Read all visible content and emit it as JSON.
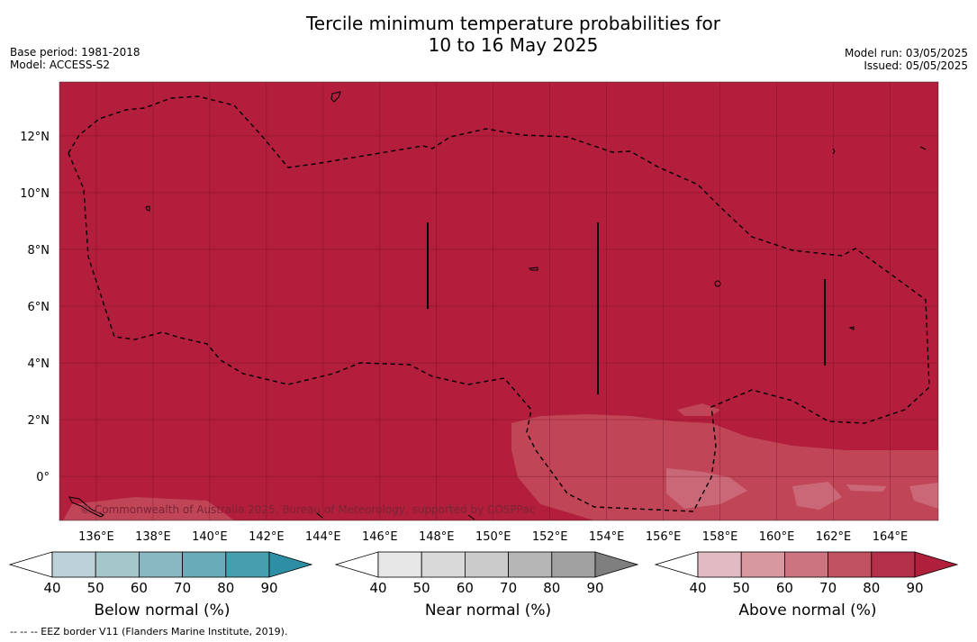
{
  "title_line1": "Tercile minimum temperature probabilities for",
  "title_line2": "10 to 16 May 2025",
  "base_period": "Base period: 1981-2018",
  "model": "Model: ACCESS-S2",
  "model_run": "Model run: 03/05/2025",
  "issued": "Issued: 05/05/2025",
  "copyright": "© Commonwealth of Australia 2025, Bureau of Meteorology, supported by COSPPac",
  "footer": "--  --  -- EEZ border V11 (Flanders Marine Institute, 2019).",
  "map": {
    "x_ticks": [
      "136°E",
      "138°E",
      "140°E",
      "142°E",
      "144°E",
      "146°E",
      "148°E",
      "150°E",
      "152°E",
      "154°E",
      "156°E",
      "158°E",
      "160°E",
      "162°E",
      "164°E"
    ],
    "y_ticks": [
      "12°N",
      "10°N",
      "8°N",
      "6°N",
      "4°N",
      "2°N",
      "0°"
    ],
    "dominant_category": "Above normal",
    "dominant_probability": "90",
    "background_color": "#b21e3c"
  },
  "colorbars": [
    {
      "name": "below-normal",
      "label": "Below normal (%)",
      "ticks": [
        "40",
        "50",
        "60",
        "70",
        "80",
        "90"
      ],
      "colors": [
        "#ffffff",
        "#bcd2d8",
        "#a5c7cc",
        "#89b8c2",
        "#6aabb8",
        "#479fae",
        "#2e8fa4"
      ]
    },
    {
      "name": "near-normal",
      "label": "Near normal (%)",
      "ticks": [
        "40",
        "50",
        "60",
        "70",
        "80",
        "90"
      ],
      "colors": [
        "#ffffff",
        "#e6e6e6",
        "#d9d9d9",
        "#cbcbcb",
        "#b6b6b6",
        "#a1a1a1",
        "#7f7f7f"
      ]
    },
    {
      "name": "above-normal",
      "label": "Above normal (%)",
      "ticks": [
        "40",
        "50",
        "60",
        "70",
        "80",
        "90"
      ],
      "colors": [
        "#ffffff",
        "#e2bac1",
        "#d7989f",
        "#cb7581",
        "#c15261",
        "#b42f49",
        "#b01f3b"
      ]
    }
  ]
}
